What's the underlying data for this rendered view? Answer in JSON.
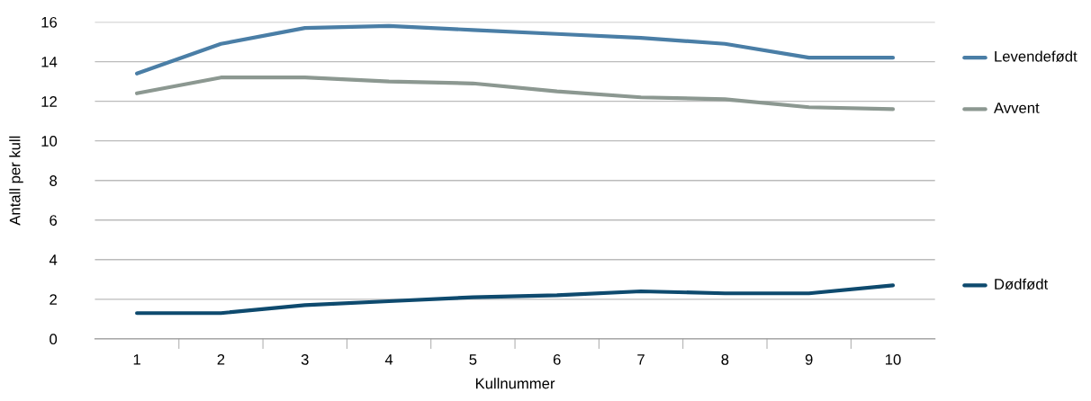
{
  "chart_data": {
    "type": "line",
    "xlabel": "Kullnummer",
    "ylabel": "Antall per kull",
    "categories": [
      "1",
      "2",
      "3",
      "4",
      "5",
      "6",
      "7",
      "8",
      "9",
      "10"
    ],
    "series": [
      {
        "name": "Levendefødt",
        "color": "#4a7ea6",
        "values": [
          13.4,
          14.9,
          15.7,
          15.8,
          15.6,
          15.4,
          15.2,
          14.9,
          14.2,
          14.2
        ]
      },
      {
        "name": "Avvent",
        "color": "#8c9891",
        "values": [
          12.4,
          13.2,
          13.2,
          13.0,
          12.9,
          12.5,
          12.2,
          12.1,
          11.7,
          11.6
        ]
      },
      {
        "name": "Dødfødt",
        "color": "#0e4a6e",
        "values": [
          1.3,
          1.3,
          1.7,
          1.9,
          2.1,
          2.2,
          2.4,
          2.3,
          2.3,
          2.7
        ]
      }
    ],
    "ylim": [
      0,
      16
    ],
    "yticks": [
      0,
      2,
      4,
      6,
      8,
      10,
      12,
      14,
      16
    ],
    "grid": "y",
    "legend": "right"
  }
}
